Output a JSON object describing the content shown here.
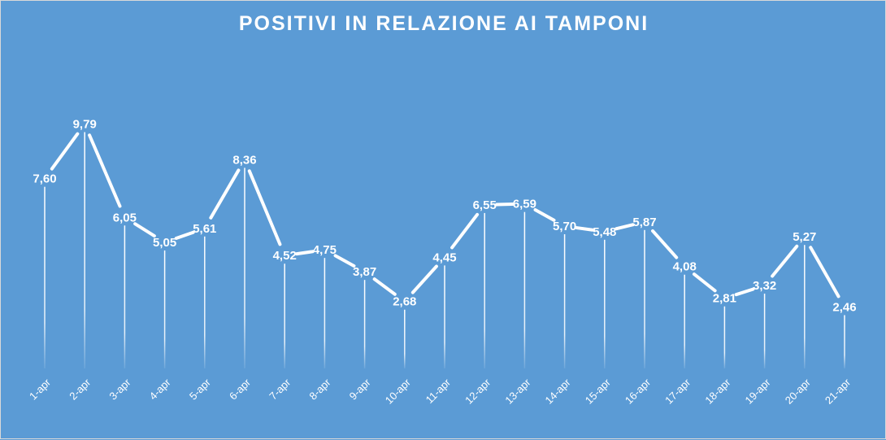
{
  "chart_data": {
    "type": "line",
    "title": "POSITIVI IN RELAZIONE AI TAMPONI",
    "categories": [
      "1-apr",
      "2-apr",
      "3-apr",
      "4-apr",
      "5-apr",
      "6-apr",
      "7-apr",
      "8-apr",
      "9-apr",
      "10-apr",
      "11-apr",
      "12-apr",
      "13-apr",
      "14-apr",
      "15-apr",
      "16-apr",
      "17-apr",
      "18-apr",
      "19-apr",
      "20-apr",
      "21-apr"
    ],
    "values": [
      7.6,
      9.79,
      6.05,
      5.05,
      5.61,
      8.36,
      4.52,
      4.75,
      3.87,
      2.68,
      4.45,
      6.55,
      6.59,
      5.7,
      5.48,
      5.87,
      4.08,
      2.81,
      3.32,
      5.27,
      2.46
    ],
    "value_labels": [
      "7,60",
      "9,79",
      "6,05",
      "5,05",
      "5,61",
      "8,36",
      "4,52",
      "4,75",
      "3,87",
      "2,68",
      "4,45",
      "6,55",
      "6,59",
      "5,70",
      "5,48",
      "5,87",
      "4,08",
      "2,81",
      "3,32",
      "5,27",
      "2,46"
    ],
    "ylim": [
      0,
      10
    ],
    "grid": false,
    "drop_lines": true,
    "colors": {
      "background": "#5b9bd5",
      "line": "#ffffff",
      "text": "#ffffff"
    }
  }
}
